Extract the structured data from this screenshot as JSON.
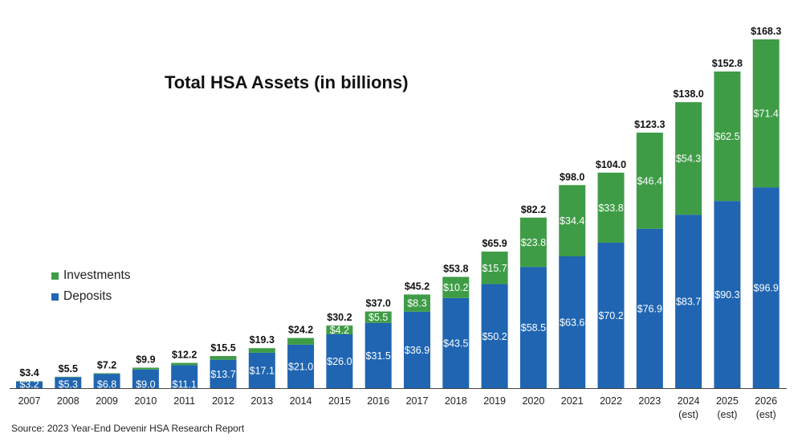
{
  "chart_data": {
    "type": "bar",
    "stacked": true,
    "title": "Total HSA Assets (in billions)",
    "source": "Source: 2023 Year-End Devenir HSA Research Report",
    "categories": [
      "2007",
      "2008",
      "2009",
      "2010",
      "2011",
      "2012",
      "2013",
      "2014",
      "2015",
      "2016",
      "2017",
      "2018",
      "2019",
      "2020",
      "2021",
      "2022",
      "2023",
      "2024",
      "2025",
      "2026"
    ],
    "category_sublabels": [
      "",
      "",
      "",
      "",
      "",
      "",
      "",
      "",
      "",
      "",
      "",
      "",
      "",
      "",
      "",
      "",
      "",
      "(est)",
      "(est)",
      "(est)"
    ],
    "series": [
      {
        "name": "Deposits",
        "color": "#1f65b2",
        "values": [
          3.2,
          5.3,
          6.8,
          9.0,
          11.1,
          13.7,
          17.1,
          21.0,
          26.0,
          31.5,
          36.9,
          43.5,
          50.2,
          58.5,
          63.6,
          70.2,
          76.9,
          83.7,
          90.3,
          96.9
        ],
        "labels": [
          "$3.2",
          "$5.3",
          "$6.8",
          "$9.0",
          "$11.1",
          "$13.7",
          "$17.1",
          "$21.0",
          "$26.0",
          "$31.5",
          "$36.9",
          "$43.5",
          "$50.2",
          "$58.5",
          "$63.6",
          "$70.2",
          "$76.9",
          "$83.7",
          "$90.3",
          "$96.9"
        ]
      },
      {
        "name": "Investments",
        "color": "#3f9c46",
        "values": [
          0.2,
          0.2,
          0.4,
          0.9,
          1.1,
          1.8,
          2.2,
          3.2,
          4.2,
          5.5,
          8.3,
          10.2,
          15.7,
          23.8,
          34.4,
          33.8,
          46.4,
          54.3,
          62.5,
          71.4
        ],
        "labels": [
          "",
          "",
          "",
          "",
          "",
          "",
          "",
          "",
          "$4.2",
          "$5.5",
          "$8.3",
          "$10.2",
          "$15.7",
          "$23.8",
          "$34.4",
          "$33.8",
          "$46.4",
          "$54.3",
          "$62.5",
          "$71.4"
        ]
      }
    ],
    "totals": [
      "$3.4",
      "$5.5",
      "$7.2",
      "$9.9",
      "$12.2",
      "$15.5",
      "$19.3",
      "$24.2",
      "$30.2",
      "$37.0",
      "$45.2",
      "$53.8",
      "$65.9",
      "$82.2",
      "$98.0",
      "$104.0",
      "$123.3",
      "$138.0",
      "$152.8",
      "$168.3"
    ],
    "total_values": [
      3.4,
      5.5,
      7.2,
      9.9,
      12.2,
      15.5,
      19.3,
      24.2,
      30.2,
      37.0,
      45.2,
      53.8,
      65.9,
      82.2,
      98.0,
      104.0,
      123.3,
      138.0,
      152.8,
      168.3
    ],
    "ylim": [
      0,
      168.3
    ],
    "yaxis_visible": false,
    "grid": false,
    "legend": {
      "position": "left-middle",
      "entries": [
        {
          "name": "Investments",
          "color": "#3f9c46"
        },
        {
          "name": "Deposits",
          "color": "#1f65b2"
        }
      ]
    }
  }
}
